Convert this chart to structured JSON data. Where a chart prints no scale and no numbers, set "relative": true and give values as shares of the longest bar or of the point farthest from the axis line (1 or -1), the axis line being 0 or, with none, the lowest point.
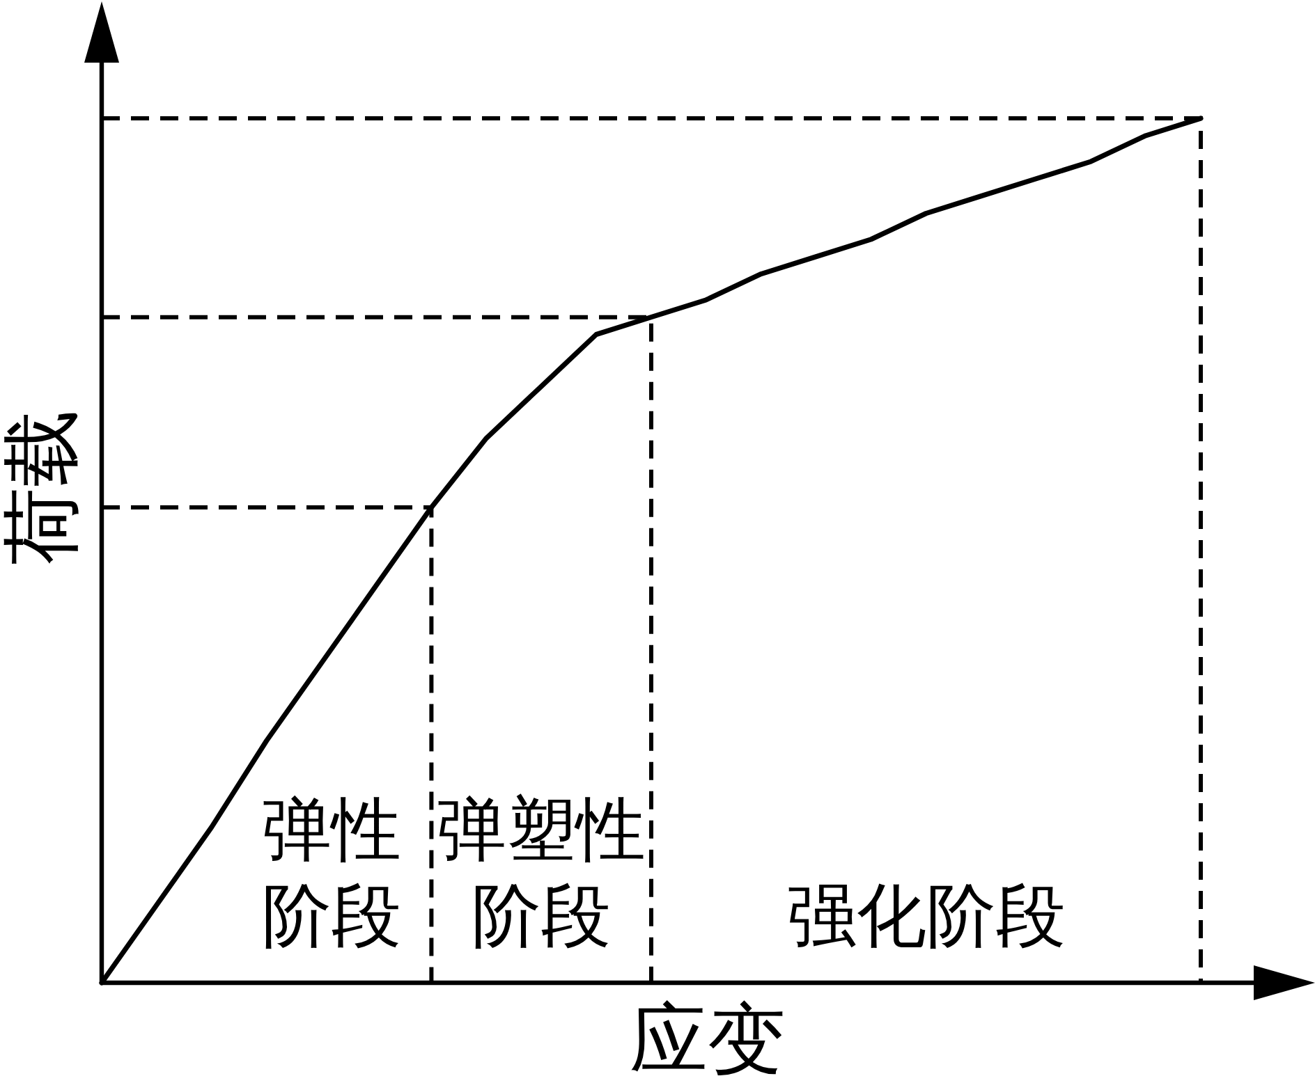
{
  "chart_data": {
    "type": "line",
    "relative": true,
    "xlabel": "应变",
    "ylabel": "荷载",
    "categories": [
      null,
      null,
      null,
      null,
      null,
      null,
      null,
      null,
      null,
      null,
      null,
      null,
      null,
      null,
      null,
      null,
      null,
      null,
      null,
      null,
      null
    ],
    "series": [
      {
        "color": "#000000",
        "line_style": "solid",
        "values": [
          0,
          0.09,
          0.18,
          0.28,
          0.37,
          0.46,
          0.55,
          0.63,
          0.69,
          0.75,
          0.77,
          0.79,
          0.82,
          0.84,
          0.86,
          0.89,
          0.91,
          0.93,
          0.95,
          0.98,
          1
        ]
      }
    ],
    "ref_lines": [
      {
        "axis": "y",
        "value": 0.55,
        "color": "#000000",
        "line_style": "dashed"
      },
      {
        "axis": "y",
        "value": 0.77,
        "color": "#000000",
        "line_style": "dashed"
      },
      {
        "axis": "y",
        "value": 1,
        "color": "#000000",
        "line_style": "dashed"
      }
    ],
    "annotations": [
      "弹性阶段",
      "弹塑性阶段",
      "强化阶段"
    ]
  }
}
